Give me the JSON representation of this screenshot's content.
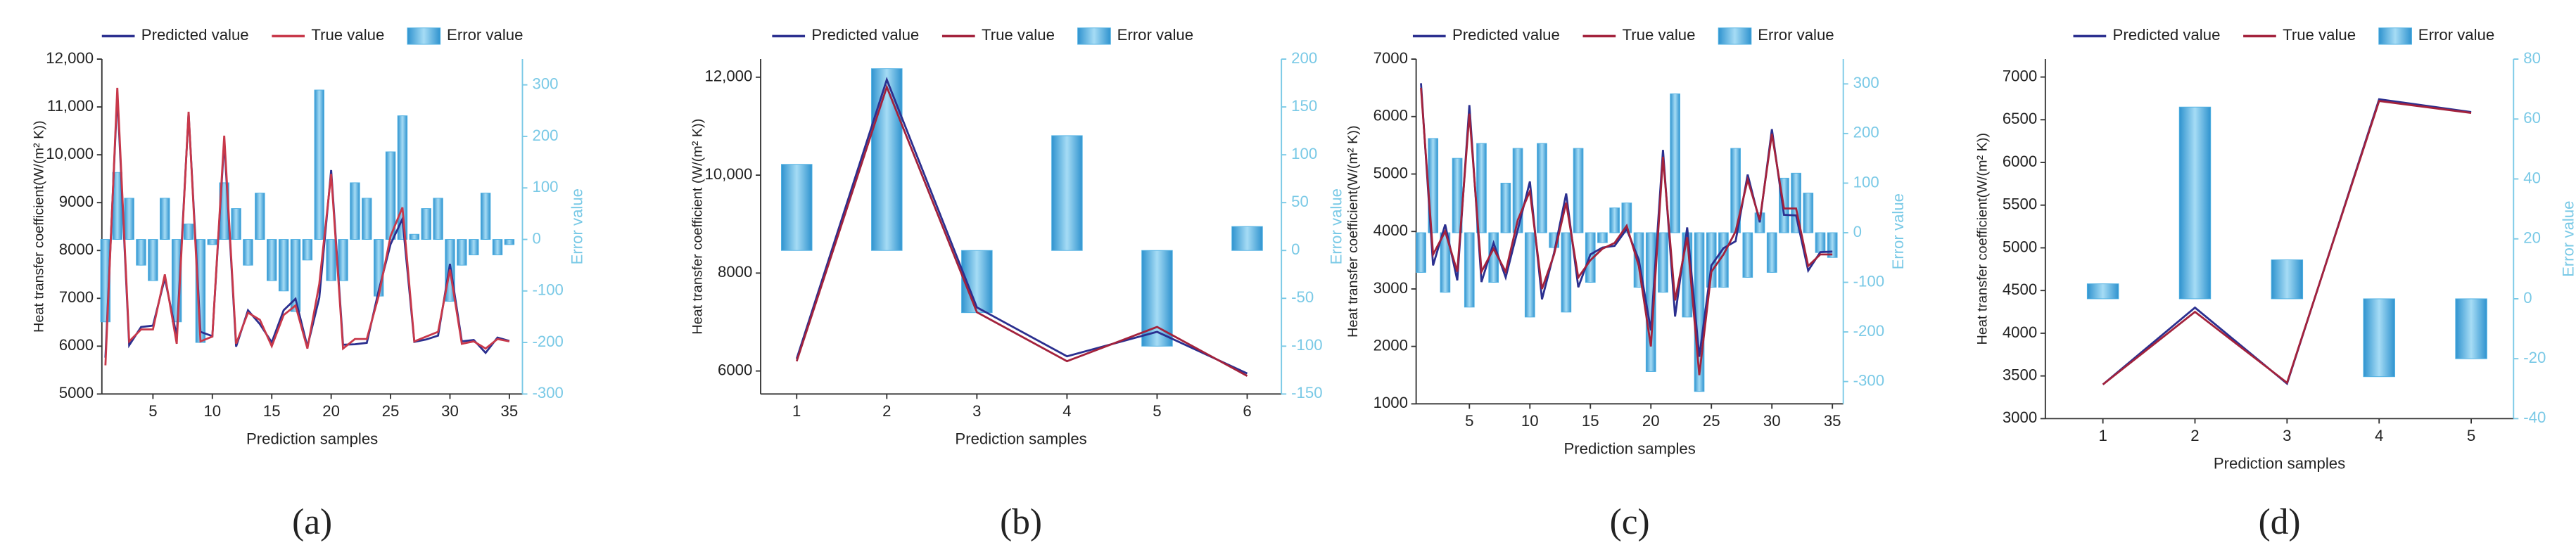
{
  "chart_data": [
    {
      "type": "line-bar",
      "label": "(a)",
      "xlabel": "Prediction samples",
      "ylabel": "Heat transfer coefficient(W/(m² K))",
      "y2label": "Error value",
      "x": [
        1,
        2,
        3,
        4,
        5,
        6,
        7,
        8,
        9,
        10,
        11,
        12,
        13,
        14,
        15,
        16,
        17,
        18,
        19,
        20,
        21,
        22,
        23,
        24,
        25,
        26,
        27,
        28,
        29,
        30,
        31,
        32,
        33,
        34,
        35
      ],
      "xlim": [
        0.7,
        36.1
      ],
      "xticks": [
        5,
        10,
        15,
        20,
        25,
        30,
        35
      ],
      "ylim": [
        5000,
        12000
      ],
      "yticks": [
        {
          "value": 5000,
          "label": "5000"
        },
        {
          "value": 6000,
          "label": "6000"
        },
        {
          "value": 7000,
          "label": "7000"
        },
        {
          "value": 8000,
          "label": "8000"
        },
        {
          "value": 9000,
          "label": "9000"
        },
        {
          "value": 10000,
          "label": "10,000"
        },
        {
          "value": 11000,
          "label": "11,000"
        },
        {
          "value": 12000,
          "label": "12,000"
        }
      ],
      "y2lim": [
        -300,
        350
      ],
      "y2ticks": [
        -300,
        -200,
        -100,
        0,
        100,
        200,
        300
      ],
      "series": [
        {
          "name": "Predicted value",
          "color": "#2b2f8f",
          "values": [
            5760,
            11270,
            6020,
            6400,
            6430,
            7420,
            6210,
            10870,
            6300,
            6210,
            10290,
            5990,
            6750,
            6460,
            6080,
            6750,
            6990,
            5990,
            7010,
            9680,
            6030,
            6040,
            6070,
            7160,
            8130,
            8660,
            6090,
            6140,
            6220,
            7720,
            6100,
            6130,
            5860,
            6180,
            6110
          ]
        },
        {
          "name": "True value",
          "color": "#c8384a",
          "values": [
            5600,
            11400,
            6100,
            6350,
            6350,
            7500,
            6050,
            10900,
            6100,
            6200,
            10400,
            6050,
            6700,
            6550,
            6000,
            6650,
            6850,
            5950,
            7300,
            9600,
            5950,
            6150,
            6150,
            7050,
            8300,
            8900,
            6100,
            6200,
            6300,
            7600,
            6050,
            6100,
            5950,
            6150,
            6100
          ]
        },
        {
          "name": "Error value",
          "color": "#4fb0e2",
          "axis": "y2",
          "values": [
            -160,
            130,
            80,
            -50,
            -80,
            80,
            -160,
            30,
            -200,
            -10,
            110,
            60,
            -50,
            90,
            -80,
            -100,
            -140,
            -40,
            290,
            -80,
            -80,
            110,
            80,
            -110,
            170,
            240,
            10,
            60,
            80,
            -120,
            -50,
            -30,
            90,
            -30,
            -10
          ]
        }
      ]
    },
    {
      "type": "line-bar",
      "label": "(b)",
      "xlabel": "Prediction samples",
      "ylabel": "Heat transfer coefficient (W/(m² K))",
      "y2label": "Error value",
      "x": [
        1,
        2,
        3,
        4,
        5,
        6
      ],
      "xlim": [
        0.6,
        6.38
      ],
      "xticks": [
        1,
        2,
        3,
        4,
        5,
        6
      ],
      "ylim": [
        5530,
        12370
      ],
      "yticks": [
        {
          "value": 6000,
          "label": "6000"
        },
        {
          "value": 8000,
          "label": "8000"
        },
        {
          "value": 10000,
          "label": "10,000"
        },
        {
          "value": 12000,
          "label": "12,000"
        }
      ],
      "y2lim": [
        -150,
        200
      ],
      "y2ticks": [
        -150,
        -100,
        -50,
        0,
        50,
        100,
        150,
        200
      ],
      "series": [
        {
          "name": "Predicted value",
          "color": "#2b2f8f",
          "values": [
            6250,
            11950,
            7300,
            6300,
            6800,
            5950
          ]
        },
        {
          "name": "True value",
          "color": "#a3223c",
          "values": [
            6200,
            11800,
            7200,
            6200,
            6900,
            5900
          ]
        },
        {
          "name": "Error value",
          "color": "#4fb0e2",
          "axis": "y2",
          "values": [
            90,
            190,
            -65,
            120,
            -100,
            25
          ]
        }
      ]
    },
    {
      "type": "line-bar",
      "label": "(c)",
      "xlabel": "Prediction samples",
      "ylabel": "Heat transfer coefficient(W/(m² K))",
      "y2label": "Error value",
      "x": [
        1,
        2,
        3,
        4,
        5,
        6,
        7,
        8,
        9,
        10,
        11,
        12,
        13,
        14,
        15,
        16,
        17,
        18,
        19,
        20,
        21,
        22,
        23,
        24,
        25,
        26,
        27,
        28,
        29,
        30,
        31,
        32,
        33,
        34,
        35
      ],
      "xlim": [
        0.6,
        35.9
      ],
      "xticks": [
        5,
        10,
        15,
        20,
        25,
        30,
        35
      ],
      "ylim": [
        1000,
        7000
      ],
      "yticks": [
        1000,
        2000,
        3000,
        4000,
        5000,
        6000,
        7000
      ],
      "y2lim": [
        -345,
        350
      ],
      "y2ticks": [
        -300,
        -200,
        -100,
        0,
        100,
        200,
        300
      ],
      "series": [
        {
          "name": "Predicted value",
          "color": "#2b2f8f",
          "values": [
            6580,
            3410,
            4120,
            3150,
            6200,
            3120,
            3800,
            3200,
            4030,
            4870,
            2820,
            3630,
            4660,
            3030,
            3600,
            3720,
            3750,
            4040,
            3510,
            2280,
            5420,
            2520,
            4070,
            1820,
            3410,
            3710,
            3830,
            4990,
            4160,
            5780,
            4290,
            4280,
            3320,
            3640,
            3650
          ]
        },
        {
          "name": "True value",
          "color": "#a3223c",
          "values": [
            6500,
            3600,
            4000,
            3300,
            6050,
            3300,
            3700,
            3300,
            4200,
            4700,
            3000,
            3600,
            4500,
            3200,
            3500,
            3700,
            3800,
            4100,
            3400,
            2000,
            5300,
            2800,
            3900,
            1500,
            3300,
            3600,
            4000,
            4900,
            4200,
            5700,
            4400,
            4400,
            3400,
            3600,
            3600
          ]
        },
        {
          "name": "Error value",
          "color": "#4fb0e2",
          "axis": "y2",
          "values": [
            -80,
            190,
            -120,
            150,
            -150,
            180,
            -100,
            100,
            170,
            -170,
            180,
            -30,
            -160,
            170,
            -100,
            -20,
            50,
            60,
            -110,
            -280,
            -120,
            280,
            -170,
            -320,
            -110,
            -110,
            170,
            -90,
            40,
            -80,
            110,
            120,
            80,
            -40,
            -50
          ]
        }
      ]
    },
    {
      "type": "line-bar",
      "label": "(d)",
      "xlabel": "Prediction samples",
      "ylabel": "Heat transfer coefficient(W/(m² K))",
      "y2label": "Error value",
      "x": [
        1,
        2,
        3,
        4,
        5
      ],
      "xlim": [
        0.375,
        5.46
      ],
      "xticks": [
        1,
        2,
        3,
        4,
        5
      ],
      "ylim": [
        3000,
        7210
      ],
      "yticks": [
        3000,
        3500,
        4000,
        4500,
        5000,
        5500,
        6000,
        6500,
        7000
      ],
      "y2lim": [
        -40,
        80
      ],
      "y2ticks": [
        -40,
        -20,
        0,
        20,
        40,
        60,
        80
      ],
      "series": [
        {
          "name": "Predicted value",
          "color": "#2b2f8f",
          "values": [
            3400,
            4300,
            3410,
            6740,
            6590
          ]
        },
        {
          "name": "True value",
          "color": "#a3223c",
          "values": [
            3400,
            4250,
            3420,
            6720,
            6580
          ]
        },
        {
          "name": "Error value",
          "color": "#4fb0e2",
          "axis": "y2",
          "values": [
            5,
            64,
            13,
            -26,
            -20
          ]
        }
      ]
    }
  ]
}
